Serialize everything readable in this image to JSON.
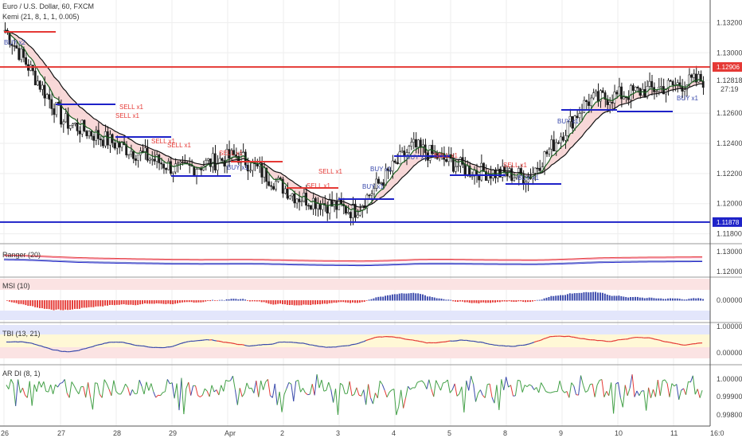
{
  "header": {
    "title": "Euro / U.S. Dollar, 60, FXCM",
    "indicator": "Kemi (21, 8, 1, 1, 0.005)"
  },
  "price_panel": {
    "yticks": [
      "1.13200",
      "1.13000",
      "1.12818",
      "1.12600",
      "1.12400",
      "1.12200",
      "1.12000",
      "1.11800"
    ],
    "ytick_values": [
      1.132,
      1.13,
      1.12818,
      1.126,
      1.124,
      1.122,
      1.12,
      1.118
    ],
    "countdown": "27:19",
    "resistance": {
      "label": "1.12906",
      "value": 1.12906,
      "color": "#e53935"
    },
    "support": {
      "label": "1.11878",
      "value": 1.11878,
      "color": "#1e22c8"
    },
    "current_price": 1.12818
  },
  "subpanels": [
    {
      "name": "Ranger (20)",
      "yticks": [
        "1.13000",
        "1.12000"
      ]
    },
    {
      "name": "MSI (10)",
      "yticks": [
        "0.00000"
      ]
    },
    {
      "name": "TBI (13, 21)",
      "yticks": [
        "1.00000",
        "0.00000"
      ]
    },
    {
      "name": "AR DI (8, 1)",
      "yticks": [
        "1.00000",
        "0.99900",
        "0.99800"
      ]
    }
  ],
  "xaxis": {
    "labels": [
      "26",
      "27",
      "28",
      "29",
      "Apr",
      "2",
      "3",
      "4",
      "5",
      "8",
      "9",
      "10",
      "11",
      "16:0"
    ]
  },
  "signals": [
    {
      "type": "sell",
      "text": "SELL x1"
    },
    {
      "type": "sell",
      "text": "SELL x1"
    },
    {
      "type": "sell",
      "text": "SELL x1"
    },
    {
      "type": "sell",
      "text": "SELL x1"
    },
    {
      "type": "sell",
      "text": "SELL x1"
    },
    {
      "type": "sell",
      "text": "SELL x1"
    },
    {
      "type": "sell",
      "text": "SELL x1"
    },
    {
      "type": "sell",
      "text": "SELL x1"
    },
    {
      "type": "sell",
      "text": "SELL x1"
    },
    {
      "type": "buy",
      "text": "BUY x1"
    },
    {
      "type": "buy",
      "text": "BUY x1"
    },
    {
      "type": "buy",
      "text": "BUY x1"
    },
    {
      "type": "buy",
      "text": "BUY x1"
    },
    {
      "type": "buy",
      "text": "BUY x1"
    },
    {
      "type": "buy",
      "text": "BUY x1"
    },
    {
      "type": "buy",
      "text": "BUY x1"
    },
    {
      "type": "buy",
      "text": "BUY x2"
    }
  ],
  "colors": {
    "bull": "#26a69a",
    "bear": "#e53935",
    "grid": "#eeeeee",
    "axis": "#555555",
    "sellText": "#e53935",
    "buyText": "#3949ab"
  },
  "chart_data": {
    "type": "line",
    "title": "Euro / U.S. Dollar, 60, FXCM",
    "x": [
      "26",
      "27",
      "28",
      "29",
      "Apr",
      "2",
      "3",
      "4",
      "5",
      "8",
      "9",
      "10",
      "11"
    ],
    "series": [
      {
        "name": "Euro / U.S. Dollar",
        "values": [
          1.1315,
          1.1255,
          1.1238,
          1.1222,
          1.1232,
          1.1205,
          1.1195,
          1.1238,
          1.1222,
          1.1218,
          1.1268,
          1.1275,
          1.1282
        ]
      }
    ],
    "ylim": [
      1.118,
      1.133
    ],
    "annotations": [
      {
        "type": "hline",
        "value": 1.12906,
        "label": "1.12906"
      },
      {
        "type": "hline",
        "value": 1.11878,
        "label": "1.11878"
      }
    ]
  }
}
